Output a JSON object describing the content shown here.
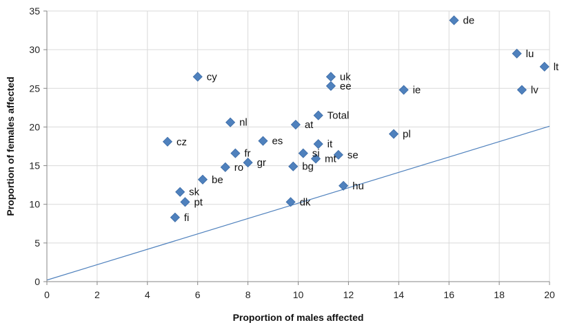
{
  "chart_data": {
    "type": "scatter",
    "xlabel": "Proportion of males affected",
    "ylabel": "Proportion of females affected",
    "xlim": [
      0,
      20
    ],
    "ylim": [
      0,
      35
    ],
    "xticks": [
      0,
      2,
      4,
      6,
      8,
      10,
      12,
      14,
      16,
      18,
      20
    ],
    "yticks": [
      0,
      5,
      10,
      15,
      20,
      25,
      30,
      35
    ],
    "grid": true,
    "legend": "none",
    "colors": {
      "marker": "#4f81bd",
      "marker_edge": "#3a6aa6",
      "reference_line": "#4f81bd",
      "grid": "#d9d9d9",
      "axis": "#868686"
    },
    "reference_line": {
      "x": [
        0,
        20
      ],
      "y": [
        0.2,
        20.1
      ]
    },
    "points": [
      {
        "label": "de",
        "x": 16.2,
        "y": 33.8
      },
      {
        "label": "lu",
        "x": 18.7,
        "y": 29.5
      },
      {
        "label": "lt",
        "x": 19.8,
        "y": 27.8
      },
      {
        "label": "cy",
        "x": 6.0,
        "y": 26.5
      },
      {
        "label": "uk",
        "x": 11.3,
        "y": 26.5
      },
      {
        "label": "ee",
        "x": 11.3,
        "y": 25.3
      },
      {
        "label": "ie",
        "x": 14.2,
        "y": 24.8
      },
      {
        "label": "lv",
        "x": 18.9,
        "y": 24.8
      },
      {
        "label": "Total",
        "x": 10.8,
        "y": 21.5
      },
      {
        "label": "nl",
        "x": 7.3,
        "y": 20.6
      },
      {
        "label": "at",
        "x": 9.9,
        "y": 20.3
      },
      {
        "label": "pl",
        "x": 13.8,
        "y": 19.1
      },
      {
        "label": "cz",
        "x": 4.8,
        "y": 18.1
      },
      {
        "label": "es",
        "x": 8.6,
        "y": 18.2
      },
      {
        "label": "it",
        "x": 10.8,
        "y": 17.8
      },
      {
        "label": "fr",
        "x": 7.5,
        "y": 16.6
      },
      {
        "label": "si",
        "x": 10.2,
        "y": 16.6
      },
      {
        "label": "se",
        "x": 11.6,
        "y": 16.4
      },
      {
        "label": "mt",
        "x": 10.7,
        "y": 15.9
      },
      {
        "label": "gr",
        "x": 8.0,
        "y": 15.4
      },
      {
        "label": "ro",
        "x": 7.1,
        "y": 14.8
      },
      {
        "label": "bg",
        "x": 9.8,
        "y": 14.9
      },
      {
        "label": "be",
        "x": 6.2,
        "y": 13.2
      },
      {
        "label": "hu",
        "x": 11.8,
        "y": 12.4
      },
      {
        "label": "sk",
        "x": 5.3,
        "y": 11.6
      },
      {
        "label": "pt",
        "x": 5.5,
        "y": 10.3
      },
      {
        "label": "dk",
        "x": 9.7,
        "y": 10.3
      },
      {
        "label": "fi",
        "x": 5.1,
        "y": 8.3
      }
    ]
  }
}
